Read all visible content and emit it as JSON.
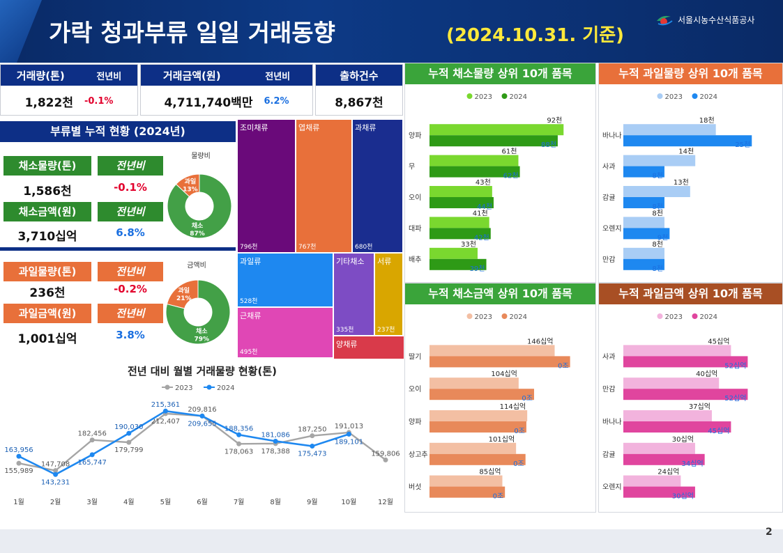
{
  "header": {
    "title": "가락 청과부류 일일 거래동향",
    "date": "(2024.10.31. 기준)",
    "org": "서울시농수산식품공사"
  },
  "page_number": "2",
  "kpi": {
    "volume": {
      "label": "거래량(톤)",
      "yoy_label": "전년비",
      "value": "1,822천",
      "yoy": "-0.1%"
    },
    "amount": {
      "label": "거래금액(원)",
      "yoy_label": "전년비",
      "value": "4,711,740백만",
      "yoy": "6.2%"
    },
    "shipments": {
      "label": "출하건수",
      "value": "8,867천"
    }
  },
  "category_summary": {
    "title": "부류별 누적 현황 (2024년)",
    "veg_volume": {
      "label": "채소물량(톤)",
      "yoy_label": "전년비",
      "value": "1,586천",
      "yoy": "-0.1%"
    },
    "veg_amount": {
      "label": "채소금액(원)",
      "yoy_label": "전년비",
      "value": "3,710십억",
      "yoy": "6.8%"
    },
    "fruit_volume": {
      "label": "과일물량(톤)",
      "yoy_label": "전년비",
      "value": "236천",
      "yoy": "-0.2%"
    },
    "fruit_amount": {
      "label": "과일금액(원)",
      "yoy_label": "전년비",
      "value": "1,001십억",
      "yoy": "3.8%"
    },
    "donut_volume": {
      "title": "물량비",
      "fruit_label": "과일",
      "fruit_pct": "13%",
      "veg_label": "채소",
      "veg_pct": "87%",
      "fruit_share": 13
    },
    "donut_amount": {
      "title": "금액비",
      "fruit_label": "과일",
      "fruit_pct": "21%",
      "veg_label": "채소",
      "veg_pct": "79%",
      "fruit_share": 21
    }
  },
  "colors": {
    "navy": "#0d2f86",
    "veg_green": "#2e8b2e",
    "fruit_orange": "#e8703a",
    "donut_green": "#43a047",
    "donut_orange": "#e8703a",
    "veg2023": "#7ad82f",
    "veg2024": "#2e9a16",
    "fruit2023": "#a9cdf5",
    "fruit2024": "#1e88f0",
    "vegamt2023": "#f3bfa3",
    "vegamt2024": "#e8895a",
    "fruitamt2023": "#f2b3dd",
    "fruitamt2024": "#e0459e",
    "line2023": "#a5a5a5",
    "line2024": "#1e88f0"
  },
  "chart_data": [
    {
      "type": "treemap",
      "items": [
        {
          "name": "조미채류",
          "value": 796,
          "label": "796천",
          "color": "#6a0a7a"
        },
        {
          "name": "엽채류",
          "value": 767,
          "label": "767천",
          "color": "#e8703a"
        },
        {
          "name": "과채류",
          "value": 680,
          "label": "680천",
          "color": "#1a2d8f"
        },
        {
          "name": "과일류",
          "value": 528,
          "label": "528천",
          "color": "#1e88f0"
        },
        {
          "name": "근채류",
          "value": 495,
          "label": "495천",
          "color": "#e047b5"
        },
        {
          "name": "기타채소",
          "value": 335,
          "label": "335천",
          "color": "#7d4cc4"
        },
        {
          "name": "서류",
          "value": 237,
          "label": "237천",
          "color": "#d9a600"
        },
        {
          "name": "양채류",
          "value": null,
          "label": "",
          "color": "#d93a4a"
        }
      ]
    },
    {
      "type": "line",
      "title": "전년 대비 월별 거래물량 현황(톤)",
      "categories": [
        "1월",
        "2월",
        "3월",
        "4월",
        "5월",
        "6월",
        "7월",
        "8월",
        "9월",
        "10월",
        "12월"
      ],
      "series": [
        {
          "name": "2023",
          "values": [
            155989,
            147708,
            182456,
            179799,
            212407,
            209816,
            178063,
            178388,
            187250,
            191013,
            159806
          ],
          "labels": [
            "155,989",
            "147,708",
            "182,456",
            "179,799",
            "212,407",
            "209,816",
            "178,063",
            "178,388",
            "187,250",
            "191,013",
            "159,806"
          ]
        },
        {
          "name": "2024",
          "values": [
            163956,
            143231,
            165747,
            190030,
            215361,
            209655,
            188356,
            181086,
            175473,
            189101,
            null
          ],
          "labels": [
            "163,956",
            "143,231",
            "165,747",
            "190,030",
            "215,361",
            "209,655",
            "188,356",
            "181,086",
            "175,473",
            "189,101",
            ""
          ]
        }
      ],
      "ylim": [
        130000,
        225000
      ]
    },
    {
      "type": "bar",
      "title": "누적 채소물량 상위 10개 품목",
      "orientation": "horizontal",
      "categories": [
        "양파",
        "무",
        "오이",
        "대파",
        "배추"
      ],
      "series": [
        {
          "name": "2023",
          "values": [
            92,
            61,
            43,
            41,
            33
          ],
          "labels": [
            "92천",
            "61천",
            "43천",
            "41천",
            "33천"
          ]
        },
        {
          "name": "2024",
          "values": [
            88,
            62,
            44,
            42,
            39
          ],
          "labels": [
            "88천",
            "62천",
            "44천",
            "42천",
            "39천"
          ]
        }
      ],
      "xmax": 100
    },
    {
      "type": "bar",
      "title": "누적 과일물량 상위 10개 품목",
      "orientation": "horizontal",
      "categories": [
        "바나나",
        "사과",
        "감귤",
        "오렌지",
        "만감"
      ],
      "series": [
        {
          "name": "2023",
          "values": [
            18,
            14,
            13,
            8,
            8
          ],
          "labels": [
            "18천",
            "14천",
            "13천",
            "8천",
            "8천"
          ]
        },
        {
          "name": "2024",
          "values": [
            25,
            8,
            8,
            9,
            8
          ],
          "labels": [
            "25천",
            "8천",
            "8천",
            "9천",
            "8천"
          ]
        }
      ],
      "xmax": 27
    },
    {
      "type": "bar",
      "title": "누적 채소금액 상위 10개 품목",
      "orientation": "horizontal",
      "categories": [
        "딸기",
        "오이",
        "양파",
        "상고추",
        "버섯"
      ],
      "series": [
        {
          "name": "2023",
          "values": [
            146,
            104,
            114,
            101,
            85
          ],
          "labels": [
            "146십억",
            "104십억",
            "114십억",
            "101십억",
            "85십억"
          ]
        },
        {
          "name": "2024",
          "values": [
            164,
            122,
            113,
            112,
            88
          ],
          "labels": [
            "0조",
            "0조",
            "0조",
            "0조",
            "0조"
          ]
        }
      ],
      "xmax": 170
    },
    {
      "type": "bar",
      "title": "누적 과일금액 상위 10개 품목",
      "orientation": "horizontal",
      "categories": [
        "사과",
        "만감",
        "바나나",
        "감귤",
        "오렌지"
      ],
      "series": [
        {
          "name": "2023",
          "values": [
            45,
            40,
            37,
            30,
            24
          ],
          "labels": [
            "45십억",
            "40십억",
            "37십억",
            "30십억",
            "24십억"
          ]
        },
        {
          "name": "2024",
          "values": [
            52,
            52,
            45,
            34,
            30
          ],
          "labels": [
            "52십억",
            "52십억",
            "45십억",
            "34십억",
            "30십억"
          ]
        }
      ],
      "xmax": 58
    }
  ]
}
